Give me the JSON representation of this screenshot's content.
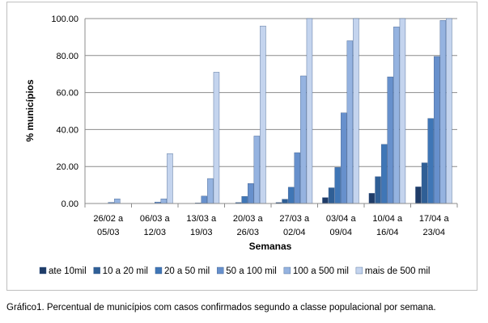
{
  "chart_data": {
    "type": "bar",
    "title": "",
    "xlabel": "Semanas",
    "ylabel": "% municípios",
    "ylim": [
      0,
      100
    ],
    "yticks": [
      "0.00",
      "20.00",
      "40.00",
      "60.00",
      "80.00",
      "100.00"
    ],
    "ytick_values": [
      0,
      20,
      40,
      60,
      80,
      100
    ],
    "grid": true,
    "legend_position": "bottom",
    "categories": [
      [
        "26/02 a",
        "05/03"
      ],
      [
        "06/03 a",
        "12/03"
      ],
      [
        "13/03 a",
        "19/03"
      ],
      [
        "20/03 a",
        "26/03"
      ],
      [
        "27/03 a",
        "02/04"
      ],
      [
        "03/04 a",
        "09/04"
      ],
      [
        "10/04 a",
        "16/04"
      ],
      [
        "17/04 a",
        "23/04"
      ]
    ],
    "series": [
      {
        "name": "ate 10mil",
        "color": "#1f3c68",
        "values": [
          0,
          0,
          0,
          0,
          0.5,
          3.2,
          5.5,
          9.0
        ]
      },
      {
        "name": "10 a 20 mil",
        "color": "#2f5f96",
        "values": [
          0,
          0,
          0,
          0.5,
          2.3,
          8.5,
          14.5,
          22.0
        ]
      },
      {
        "name": "20 a 50 mil",
        "color": "#3f76b6",
        "values": [
          0,
          0,
          0.3,
          3.8,
          8.8,
          19.5,
          32.0,
          46.0
        ]
      },
      {
        "name": "50 a 100 mil",
        "color": "#6790cc",
        "values": [
          0.6,
          0.8,
          4.0,
          10.8,
          27.5,
          49.0,
          68.5,
          79.5
        ]
      },
      {
        "name": "100 a 500 mil",
        "color": "#95b3e0",
        "values": [
          2.5,
          2.5,
          13.5,
          36.5,
          69.0,
          88.0,
          95.5,
          99.0
        ]
      },
      {
        "name": "mais de 500 mil",
        "color": "#c4d4ee",
        "values": [
          0,
          27.0,
          71.0,
          96.0,
          100,
          100,
          100,
          100
        ]
      }
    ]
  },
  "caption": "Gráfico1. Percentual de municípios com casos confirmados segundo a classe populacional por semana."
}
